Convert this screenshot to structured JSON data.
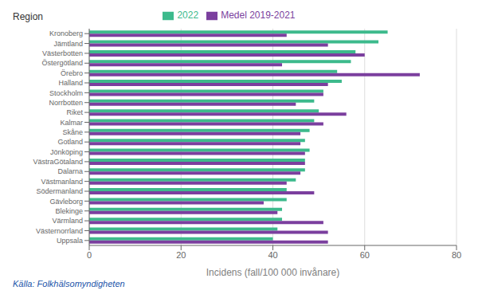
{
  "chart_data": {
    "type": "bar",
    "orientation": "horizontal",
    "xlabel": "Incidens (fall/100 000 invånare)",
    "ylabel": "Region",
    "categories": [
      "Kronoberg",
      "Jämtland",
      "Västerbotten",
      "Östergötland",
      "Örebro",
      "Halland",
      "Stockholm",
      "Norrbotten",
      "Riket",
      "Kalmar",
      "Skåne",
      "Gotland",
      "Jönköping",
      "VästraGötaland",
      "Dalarna",
      "Västmanland",
      "Södermanland",
      "Gävleborg",
      "Blekinge",
      "Värmland",
      "Västernorrland",
      "Uppsala"
    ],
    "series": [
      {
        "name": "2022",
        "color": "#3dba8c",
        "values": [
          65,
          63,
          58,
          57,
          54,
          55,
          51,
          49,
          50,
          49,
          48,
          47,
          48,
          47,
          47,
          45,
          43,
          43,
          42,
          42,
          41,
          40
        ]
      },
      {
        "name": "Medel 2019-2021",
        "color": "#7b3f9e",
        "values": [
          43,
          52,
          60,
          42,
          72,
          52,
          51,
          45,
          56,
          51,
          46,
          46,
          47,
          47,
          46,
          43,
          49,
          38,
          41,
          51,
          52,
          52
        ]
      }
    ],
    "xlim": [
      0,
      80
    ],
    "xticks": [
      0,
      20,
      40,
      60,
      80
    ],
    "grid": true,
    "legend": "top",
    "annotations": [
      {
        "text": "Källa: Folkhälsomyndigheten",
        "color": "#2255aa"
      }
    ]
  }
}
